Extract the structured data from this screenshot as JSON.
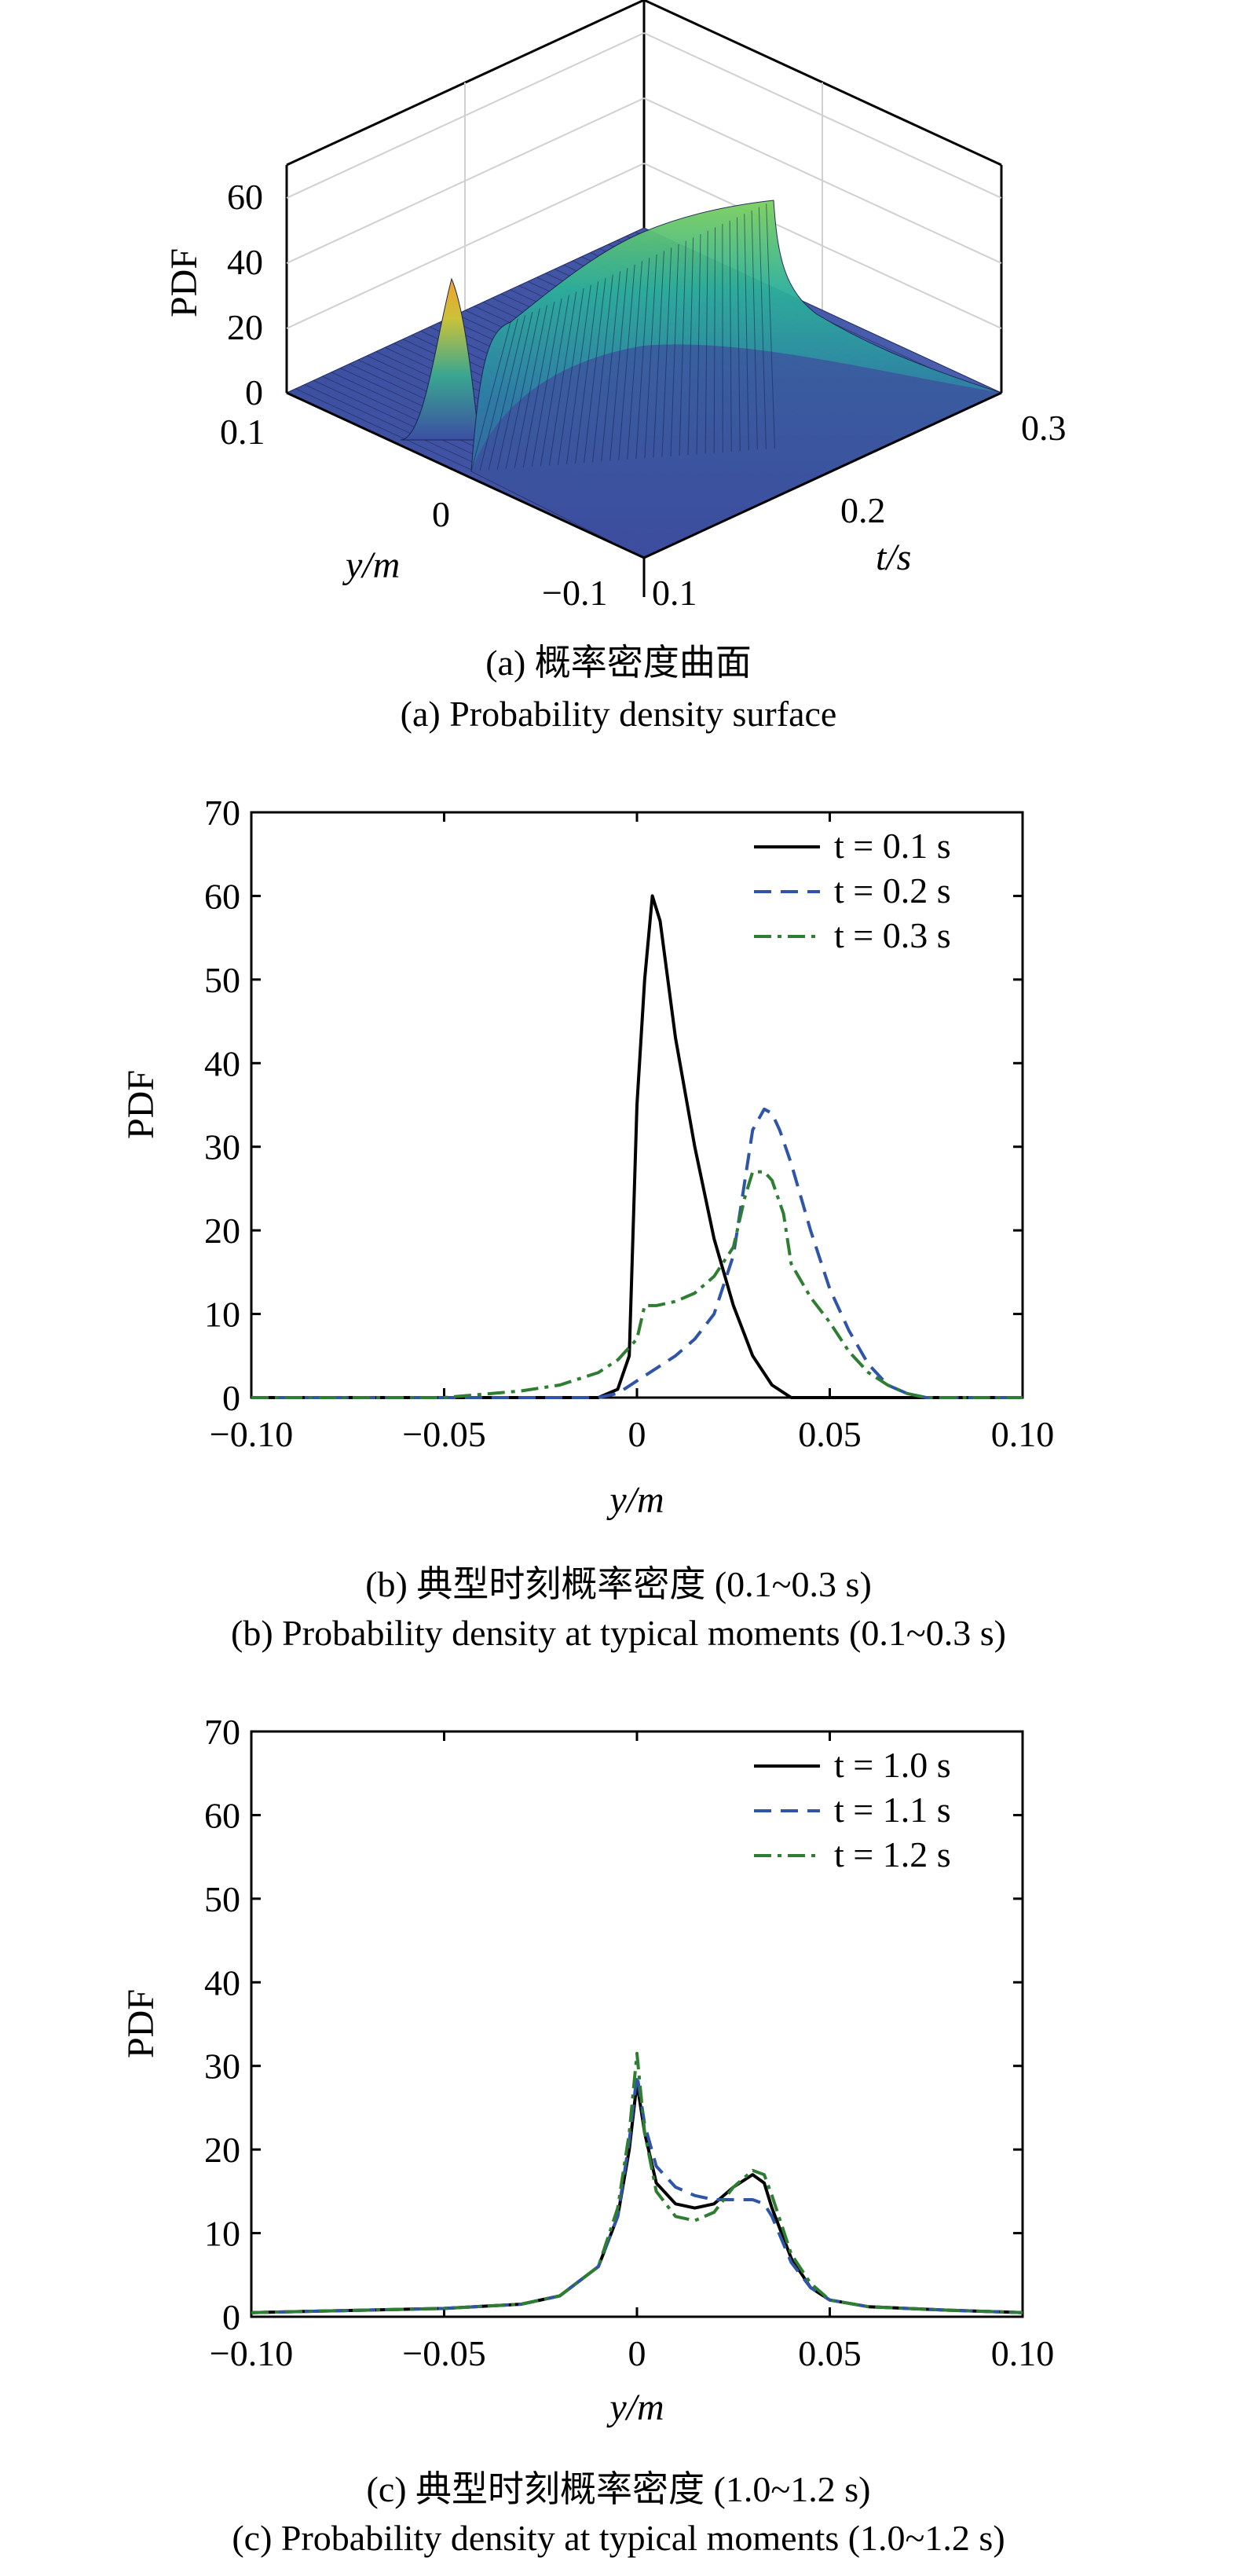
{
  "chart_data": [
    {
      "type": "surface",
      "zlabel": "PDF",
      "ylabel": "y/m",
      "xlabel": "t/s",
      "zticks": [
        "0",
        "20",
        "40",
        "60"
      ],
      "yticks": [
        "0.1",
        "0",
        "−0.1"
      ],
      "tticks": [
        "0.1",
        "0.2",
        "0.3"
      ],
      "zlim": [
        0,
        70
      ],
      "ylim": [
        -0.1,
        0.1
      ],
      "tlim": [
        0.1,
        0.3
      ],
      "caption_cn": "(a) 概率密度曲面",
      "caption_en": "(a) Probability density surface"
    },
    {
      "type": "line",
      "ylabel": "PDF",
      "xlabel": "y/m",
      "xlim": [
        -0.1,
        0.1
      ],
      "ylim": [
        0,
        70
      ],
      "xticks": [
        "−0.10",
        "−0.05",
        "0",
        "0.05",
        "0.10"
      ],
      "yticks": [
        "0",
        "10",
        "20",
        "30",
        "40",
        "50",
        "60",
        "70"
      ],
      "legend_position": "top-right",
      "series": [
        {
          "name": "t = 0.1 s",
          "color": "#000000",
          "dash": "solid",
          "x": [
            -0.1,
            -0.01,
            -0.005,
            -0.002,
            0,
            0.002,
            0.004,
            0.006,
            0.008,
            0.01,
            0.015,
            0.02,
            0.025,
            0.03,
            0.035,
            0.04,
            0.05,
            0.1
          ],
          "y": [
            0,
            0,
            1,
            5,
            35,
            50,
            60,
            57,
            50,
            43,
            30,
            19,
            11,
            5,
            1.5,
            0,
            0,
            0
          ]
        },
        {
          "name": "t = 0.2 s",
          "color": "#2f54a8",
          "dash": "dashed",
          "x": [
            -0.1,
            -0.01,
            -0.005,
            0,
            0.005,
            0.01,
            0.015,
            0.02,
            0.025,
            0.028,
            0.03,
            0.033,
            0.035,
            0.037,
            0.04,
            0.045,
            0.05,
            0.055,
            0.06,
            0.065,
            0.07,
            0.075,
            0.1
          ],
          "y": [
            0,
            0,
            0.5,
            2,
            3.5,
            5,
            7,
            10,
            17,
            26,
            32,
            34.5,
            34,
            32,
            28,
            20,
            13,
            8,
            4,
            1.5,
            0.5,
            0,
            0
          ]
        },
        {
          "name": "t = 0.3 s",
          "color": "#2e7d32",
          "dash": "dashdot",
          "x": [
            -0.1,
            -0.05,
            -0.03,
            -0.02,
            -0.01,
            -0.005,
            0,
            0.002,
            0.005,
            0.01,
            0.015,
            0.02,
            0.025,
            0.028,
            0.03,
            0.033,
            0.035,
            0.038,
            0.04,
            0.045,
            0.05,
            0.055,
            0.06,
            0.065,
            0.07,
            0.075,
            0.1
          ],
          "y": [
            0,
            0,
            0.8,
            1.5,
            3,
            4.5,
            7,
            11,
            11,
            11.5,
            12.5,
            14.5,
            18,
            24,
            27,
            27,
            26,
            22,
            16,
            12,
            9,
            5.5,
            3,
            1.5,
            0.5,
            0,
            0
          ]
        }
      ],
      "caption_cn": "(b) 典型时刻概率密度 (0.1~0.3 s)",
      "caption_en": "(b) Probability density at typical moments (0.1~0.3 s)"
    },
    {
      "type": "line",
      "ylabel": "PDF",
      "xlabel": "y/m",
      "xlim": [
        -0.1,
        0.1
      ],
      "ylim": [
        0,
        70
      ],
      "xticks": [
        "−0.10",
        "−0.05",
        "0",
        "0.05",
        "0.10"
      ],
      "yticks": [
        "0",
        "10",
        "20",
        "30",
        "40",
        "50",
        "60",
        "70"
      ],
      "legend_position": "top-right",
      "series": [
        {
          "name": "t = 1.0 s",
          "color": "#000000",
          "dash": "solid",
          "x": [
            -0.1,
            -0.05,
            -0.03,
            -0.02,
            -0.01,
            -0.005,
            -0.002,
            0,
            0.002,
            0.005,
            0.01,
            0.015,
            0.02,
            0.025,
            0.03,
            0.033,
            0.035,
            0.04,
            0.045,
            0.05,
            0.06,
            0.08,
            0.1
          ],
          "y": [
            0.5,
            1,
            1.5,
            2.5,
            6,
            12,
            20,
            28,
            22,
            16,
            13.5,
            13,
            13.5,
            15.5,
            17,
            16,
            13,
            7,
            3.5,
            2,
            1.2,
            0.8,
            0.5
          ]
        },
        {
          "name": "t = 1.1 s",
          "color": "#2f54a8",
          "dash": "dashed",
          "x": [
            -0.1,
            -0.05,
            -0.03,
            -0.02,
            -0.01,
            -0.005,
            -0.002,
            0,
            0.002,
            0.005,
            0.01,
            0.015,
            0.02,
            0.025,
            0.03,
            0.033,
            0.035,
            0.04,
            0.045,
            0.05,
            0.06,
            0.08,
            0.1
          ],
          "y": [
            0.5,
            1,
            1.5,
            2.5,
            6,
            12,
            21,
            29,
            23,
            18,
            15.5,
            14.5,
            14,
            14,
            14,
            13.5,
            12,
            6.5,
            3.5,
            2,
            1.2,
            0.8,
            0.5
          ]
        },
        {
          "name": "t = 1.2 s",
          "color": "#2e7d32",
          "dash": "dashdot",
          "x": [
            -0.1,
            -0.05,
            -0.03,
            -0.02,
            -0.01,
            -0.005,
            -0.002,
            0,
            0.002,
            0.005,
            0.01,
            0.015,
            0.02,
            0.025,
            0.03,
            0.033,
            0.035,
            0.04,
            0.045,
            0.05,
            0.06,
            0.08,
            0.1
          ],
          "y": [
            0.5,
            1,
            1.5,
            2.5,
            6,
            13,
            22,
            31.5,
            22,
            15,
            12,
            11.5,
            12.5,
            15.5,
            17.5,
            17,
            14.5,
            7.5,
            4,
            2,
            1.2,
            0.8,
            0.5
          ]
        }
      ],
      "caption_cn": "(c) 典型时刻概率密度 (1.0~1.2 s)",
      "caption_en": "(c) Probability density at typical moments (1.0~1.2 s)"
    }
  ]
}
